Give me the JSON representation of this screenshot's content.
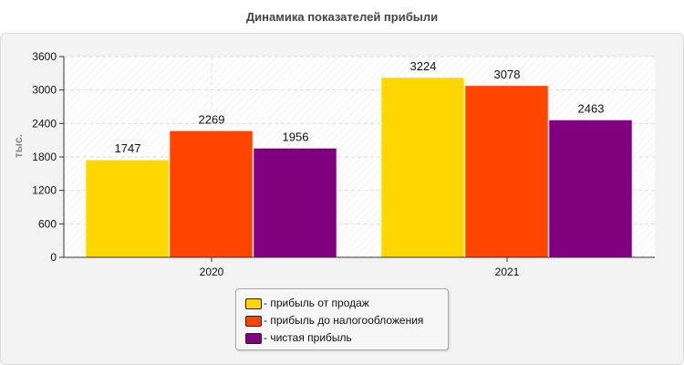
{
  "colors": {
    "series": [
      "#ffd700",
      "#ff4500",
      "#800080"
    ]
  },
  "chart_data": {
    "type": "bar",
    "title": "Динамика показателей прибыли",
    "ylabel": "тыс.",
    "xlabel": "",
    "categories": [
      "2020",
      "2021"
    ],
    "ylim": [
      0,
      3600
    ],
    "yticks": [
      0,
      600,
      1200,
      1800,
      2400,
      3000,
      3600
    ],
    "grid": true,
    "legend_position": "bottom-center",
    "series": [
      {
        "name": "- прибыль от продаж",
        "values": [
          1747,
          3224
        ]
      },
      {
        "name": "- прибыль до налогообложения",
        "values": [
          2269,
          3078
        ]
      },
      {
        "name": "- чистая прибыль",
        "values": [
          1956,
          2463
        ]
      }
    ]
  }
}
